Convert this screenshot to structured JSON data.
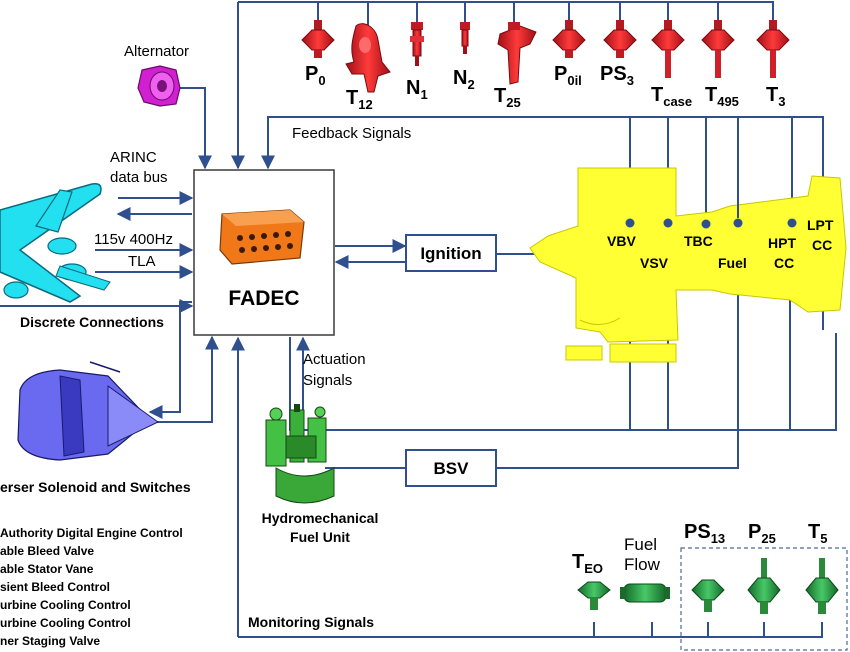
{
  "sensors": {
    "p0": {
      "main": "P",
      "sub": "0"
    },
    "t12": {
      "main": "T",
      "sub": "12"
    },
    "n1": {
      "main": "N",
      "sub": "1"
    },
    "n2": {
      "main": "N",
      "sub": "2"
    },
    "t25": {
      "main": "T",
      "sub": "25"
    },
    "p0il": {
      "main": "P",
      "sub": "0il"
    },
    "ps3": {
      "main": "PS",
      "sub": "3"
    },
    "tcase": {
      "main": "T",
      "sub": "case"
    },
    "t495": {
      "main": "T",
      "sub": "495"
    },
    "t3": {
      "main": "T",
      "sub": "3"
    }
  },
  "labels": {
    "alternator": "Alternator",
    "arinc_line1": "ARINC",
    "arinc_line2": "data bus",
    "power": "115v 400Hz",
    "tla": "TLA",
    "discrete": "Discrete Connections",
    "feedback": "Feedback Signals",
    "fadec": "FADEC",
    "ignition": "Ignition",
    "bsv": "BSV",
    "actuation_line1": "Actuation",
    "actuation_line2": "Signals",
    "hmu_line1": "Hydromechanical",
    "hmu_line2": "Fuel Unit",
    "reverser": "erser Solenoid and Switches",
    "monitoring": "Monitoring Signals"
  },
  "engine_labels": {
    "vbv": "VBV",
    "vsv": "VSV",
    "tbc": "TBC",
    "fuel": "Fuel",
    "hpt_line1": "HPT",
    "hpt_line2": "CC",
    "lpt_line1": "LPT",
    "lpt_line2": "CC"
  },
  "monitoring_sensors": {
    "teo": {
      "main": "T",
      "sub": "EO"
    },
    "fuelflow_line1": "Fuel",
    "fuelflow_line2": "Flow",
    "ps13": {
      "main": "PS",
      "sub": "13"
    },
    "p25": {
      "main": "P",
      "sub": "25"
    },
    "t5": {
      "main": "T",
      "sub": "5"
    }
  },
  "glossary": [
    "Authority Digital Engine Control",
    "able Bleed Valve",
    "able Stator Vane",
    "sient Bleed Control",
    "urbine Cooling Control",
    "urbine Cooling Control",
    "ner Staging Valve"
  ],
  "colors": {
    "line": "#2f4f8f",
    "sensor_red": "#e0202a",
    "engine_yellow": "#ffff33",
    "fadec_orange": "#f07818",
    "green": "#2aa84a",
    "aircraft_cyan": "#22e0f0",
    "nacelle_blue": "#6a6af0",
    "alternator_magenta": "#d020d0"
  }
}
